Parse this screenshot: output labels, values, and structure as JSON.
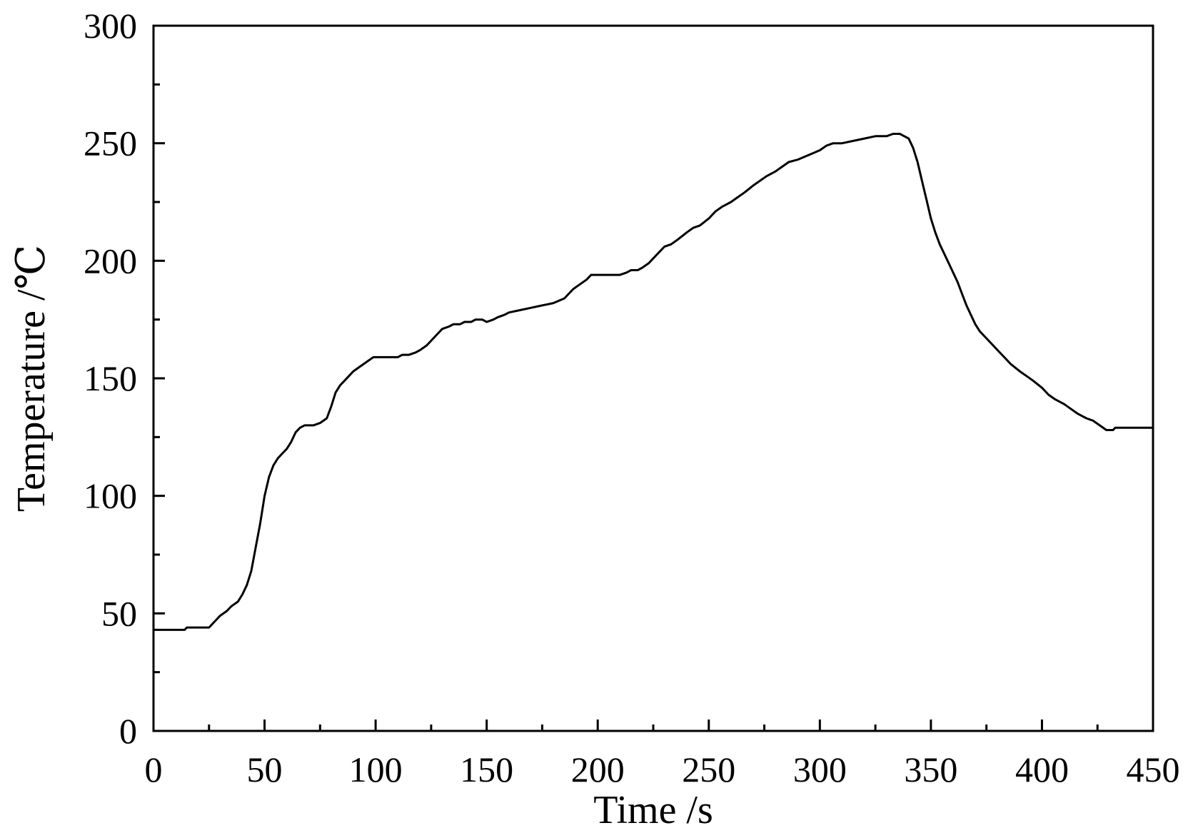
{
  "chart_data": {
    "type": "line",
    "xlabel": "Time /s",
    "ylabel": "Temperature /℃",
    "xlim": [
      0,
      450
    ],
    "ylim": [
      0,
      300
    ],
    "xticks": [
      0,
      50,
      100,
      150,
      200,
      250,
      300,
      350,
      400,
      450
    ],
    "yticks": [
      0,
      50,
      100,
      150,
      200,
      250,
      300
    ],
    "grid": false,
    "line_color": "#000000",
    "series": [
      {
        "x": [
          0,
          14,
          15,
          25,
          27,
          30,
          33,
          35,
          38,
          40,
          42,
          44,
          46,
          48,
          50,
          52,
          54,
          56,
          58,
          60,
          62,
          64,
          66,
          68,
          70,
          72,
          75,
          78,
          80,
          82,
          84,
          86,
          88,
          90,
          93,
          96,
          99,
          100,
          105,
          110,
          112,
          115,
          118,
          120,
          123,
          126,
          128,
          130,
          133,
          135,
          138,
          140,
          143,
          145,
          148,
          150,
          153,
          155,
          158,
          160,
          165,
          170,
          175,
          180,
          185,
          187,
          189,
          192,
          195,
          197,
          200,
          205,
          210,
          213,
          215,
          218,
          220,
          223,
          226,
          228,
          230,
          233,
          236,
          240,
          243,
          246,
          250,
          253,
          256,
          258,
          260,
          263,
          266,
          270,
          273,
          276,
          280,
          283,
          286,
          290,
          295,
          300,
          303,
          306,
          310,
          315,
          320,
          325,
          330,
          333,
          336,
          338,
          340,
          342,
          344,
          346,
          348,
          350,
          352,
          354,
          356,
          358,
          360,
          362,
          364,
          366,
          368,
          370,
          372,
          375,
          378,
          380,
          383,
          386,
          390,
          393,
          396,
          400,
          403,
          406,
          410,
          413,
          416,
          420,
          423,
          426,
          429,
          431,
          432,
          433,
          434,
          436,
          440,
          450
        ],
        "y": [
          43,
          43,
          44,
          44,
          46,
          49,
          51,
          53,
          55,
          58,
          62,
          68,
          78,
          88,
          100,
          108,
          113,
          116,
          118,
          120,
          123,
          127,
          129,
          130,
          130,
          130,
          131,
          133,
          138,
          144,
          147,
          149,
          151,
          153,
          155,
          157,
          159,
          159,
          159,
          159,
          160,
          160,
          161,
          162,
          164,
          167,
          169,
          171,
          172,
          173,
          173,
          174,
          174,
          175,
          175,
          174,
          175,
          176,
          177,
          178,
          179,
          180,
          181,
          182,
          184,
          186,
          188,
          190,
          192,
          194,
          194,
          194,
          194,
          195,
          196,
          196,
          197,
          199,
          202,
          204,
          206,
          207,
          209,
          212,
          214,
          215,
          218,
          221,
          223,
          224,
          225,
          227,
          229,
          232,
          234,
          236,
          238,
          240,
          242,
          243,
          245,
          247,
          249,
          250,
          250,
          251,
          252,
          253,
          253,
          254,
          254,
          253,
          252,
          248,
          242,
          234,
          226,
          218,
          212,
          207,
          203,
          199,
          195,
          191,
          186,
          181,
          177,
          173,
          170,
          167,
          164,
          162,
          159,
          156,
          153,
          151,
          149,
          146,
          143,
          141,
          139,
          137,
          135,
          133,
          132,
          130,
          128,
          128,
          128,
          129,
          129,
          129,
          129,
          129
        ]
      }
    ]
  }
}
